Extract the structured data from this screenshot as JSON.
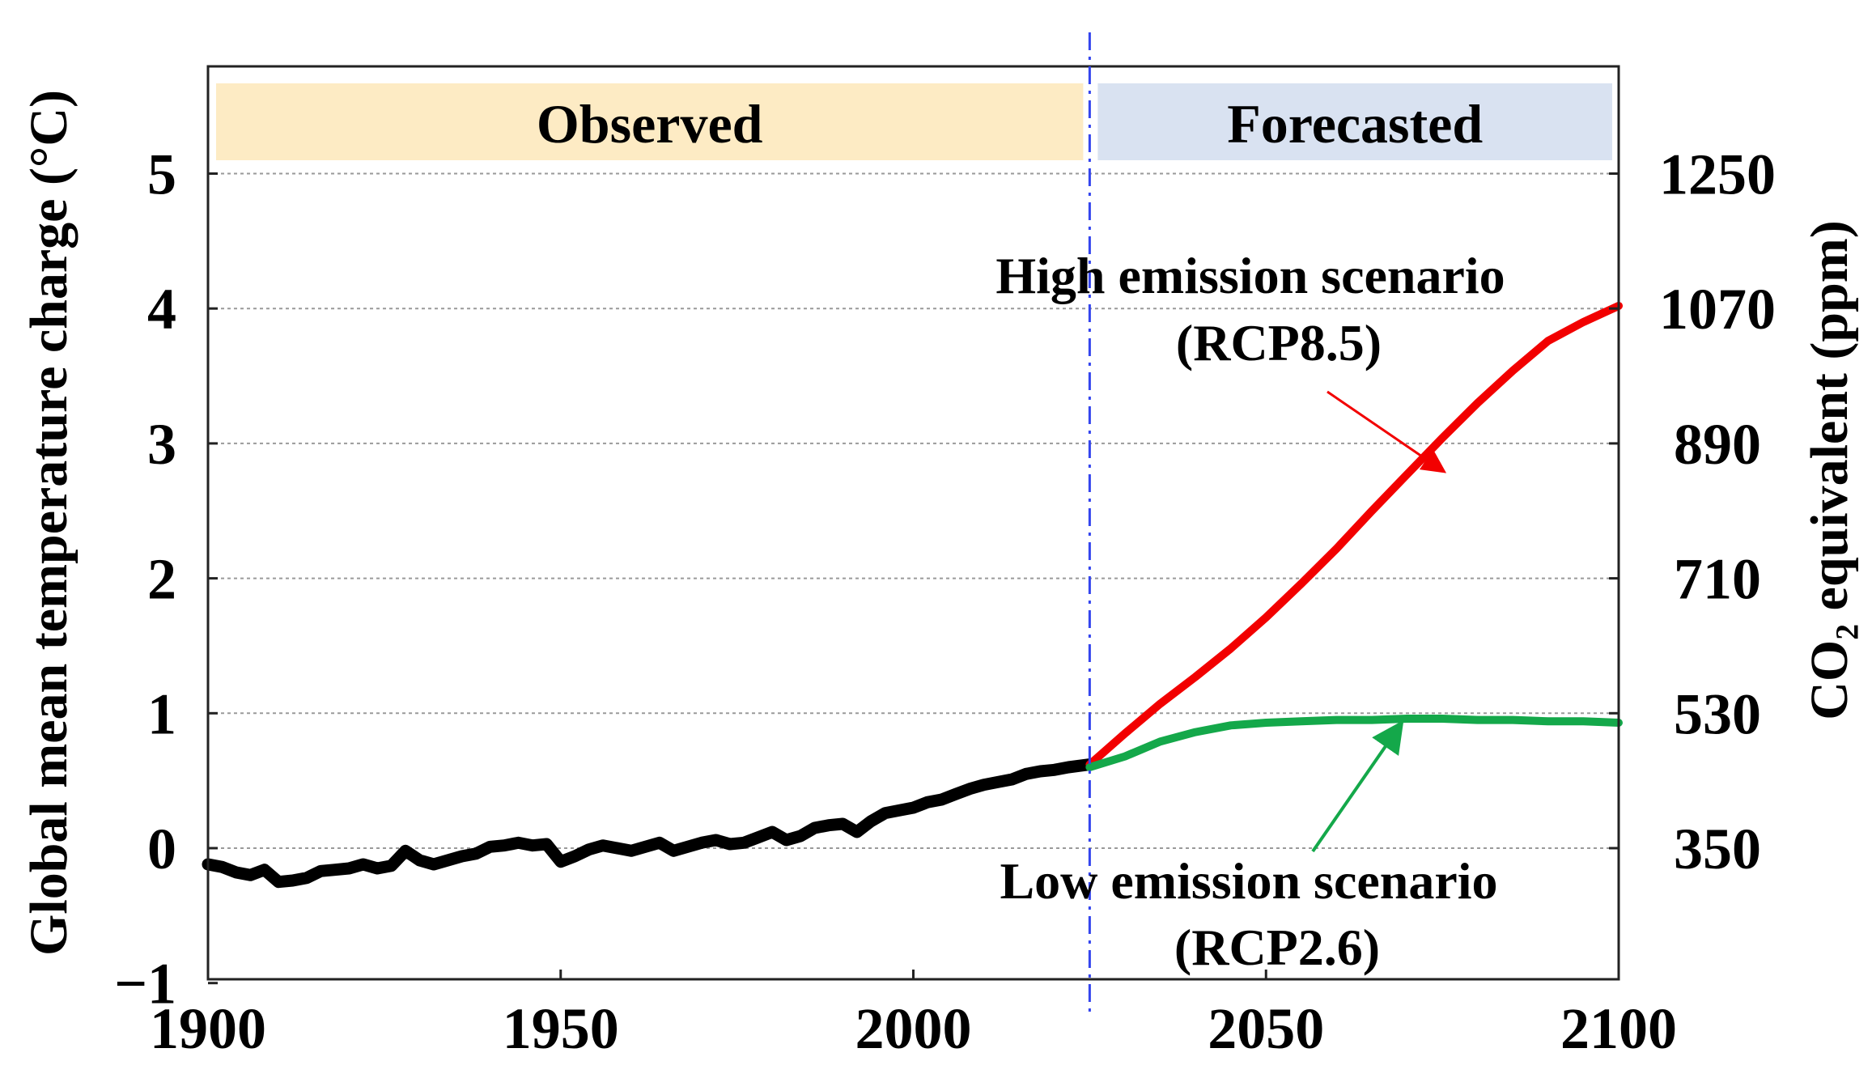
{
  "chart_data": {
    "type": "line",
    "title": "",
    "xlabel": "",
    "ylabel": "Global mean temperature charge (°C)",
    "y2label": "CO₂ equivalent (ppm)",
    "xlim": [
      1900,
      2100
    ],
    "ylim": [
      -1,
      5.6
    ],
    "x_ticks": [
      1900,
      1950,
      2000,
      2050,
      2100
    ],
    "y_ticks": [
      -1,
      0,
      1,
      2,
      3,
      4,
      5
    ],
    "y_tick_labels": [
      "−1",
      "0",
      "1",
      "2",
      "3",
      "4",
      "5"
    ],
    "y2_ticks": [
      {
        "y": 0,
        "label": "350"
      },
      {
        "y": 1,
        "label": "530"
      },
      {
        "y": 2,
        "label": "710"
      },
      {
        "y": 3,
        "label": "890"
      },
      {
        "y": 4,
        "label": "1070"
      },
      {
        "y": 5,
        "label": "1250"
      }
    ],
    "grid": true,
    "divider_x": 2025,
    "bands": [
      {
        "label": "Observed",
        "x_start": 1900,
        "x_end": 2025,
        "color": "#fdebc4"
      },
      {
        "label": "Forecasted",
        "x_start": 2025,
        "x_end": 2100,
        "color": "#d9e2f1"
      }
    ],
    "series": [
      {
        "name": "Observed",
        "color": "#000000",
        "x": [
          1900,
          1902,
          1904,
          1906,
          1908,
          1910,
          1912,
          1914,
          1916,
          1918,
          1920,
          1922,
          1924,
          1926,
          1928,
          1930,
          1932,
          1934,
          1936,
          1938,
          1940,
          1942,
          1944,
          1946,
          1948,
          1950,
          1952,
          1954,
          1956,
          1958,
          1960,
          1962,
          1964,
          1966,
          1968,
          1970,
          1972,
          1974,
          1976,
          1978,
          1980,
          1982,
          1984,
          1986,
          1988,
          1990,
          1992,
          1994,
          1996,
          1998,
          2000,
          2002,
          2004,
          2006,
          2008,
          2010,
          2012,
          2014,
          2016,
          2018,
          2020,
          2022,
          2025
        ],
        "values": [
          -0.12,
          -0.14,
          -0.18,
          -0.2,
          -0.16,
          -0.25,
          -0.24,
          -0.22,
          -0.17,
          -0.16,
          -0.15,
          -0.12,
          -0.15,
          -0.13,
          -0.02,
          -0.09,
          -0.12,
          -0.09,
          -0.06,
          -0.04,
          0.01,
          0.02,
          0.04,
          0.02,
          0.03,
          -0.1,
          -0.06,
          -0.01,
          0.02,
          0.0,
          -0.02,
          0.01,
          0.04,
          -0.02,
          0.01,
          0.04,
          0.06,
          0.03,
          0.04,
          0.08,
          0.12,
          0.06,
          0.09,
          0.15,
          0.17,
          0.18,
          0.12,
          0.2,
          0.26,
          0.28,
          0.3,
          0.34,
          0.36,
          0.4,
          0.44,
          0.47,
          0.49,
          0.51,
          0.55,
          0.57,
          0.58,
          0.6,
          0.62
        ]
      },
      {
        "name": "High emission scenario (RCP8.5)",
        "color": "#f20000",
        "x": [
          2025,
          2030,
          2035,
          2040,
          2045,
          2050,
          2055,
          2060,
          2065,
          2070,
          2075,
          2080,
          2085,
          2090,
          2095,
          2100
        ],
        "values": [
          0.62,
          0.85,
          1.07,
          1.27,
          1.48,
          1.71,
          1.96,
          2.22,
          2.5,
          2.77,
          3.04,
          3.3,
          3.54,
          3.76,
          3.9,
          4.02
        ]
      },
      {
        "name": "Low emission scenario (RCP2.6)",
        "color": "#14a84a",
        "x": [
          2025,
          2030,
          2035,
          2040,
          2045,
          2050,
          2055,
          2060,
          2065,
          2070,
          2075,
          2080,
          2085,
          2090,
          2095,
          2100
        ],
        "values": [
          0.6,
          0.68,
          0.79,
          0.86,
          0.91,
          0.93,
          0.94,
          0.95,
          0.95,
          0.96,
          0.96,
          0.95,
          0.95,
          0.94,
          0.94,
          0.93
        ]
      }
    ],
    "annotations": [
      {
        "name": "high",
        "lines": [
          "High emission scenario",
          "(RCP8.5)"
        ],
        "color": "#f20000",
        "arrow_to": [
          2075,
          2.8
        ]
      },
      {
        "name": "low",
        "lines": [
          "Low emission scenario",
          "(RCP2.6)"
        ],
        "color": "#14a84a",
        "arrow_to": [
          2069,
          0.91
        ]
      }
    ]
  }
}
